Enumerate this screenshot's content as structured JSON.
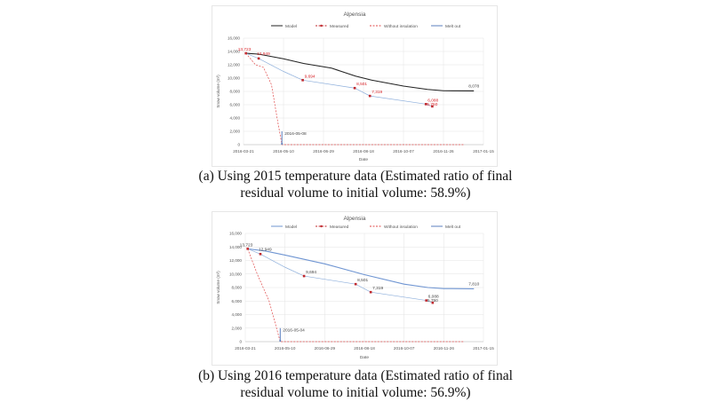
{
  "chart_data": [
    {
      "type": "line",
      "title": "Alpensia",
      "xlabel": "Date",
      "ylabel": "Snow volume (m³)",
      "ylim": [
        0,
        16000
      ],
      "yticks": [
        "0",
        "2,000",
        "4,000",
        "6,000",
        "8,000",
        "10,000",
        "12,000",
        "14,000",
        "16,000"
      ],
      "xlim": [
        "2016-03-21",
        "2017-01-15"
      ],
      "xticks": [
        "2016-03-21",
        "2016-05-10",
        "2016-06-29",
        "2016-08-18",
        "2016-10-07",
        "2016-11-26",
        "2017-01-15"
      ],
      "grid": true,
      "legend_position": "top",
      "label_color": "#d9262b",
      "series": [
        {
          "name": "Model",
          "color": "#222222",
          "points": [
            [
              "2016-03-24",
              13723
            ],
            [
              "2016-04-09",
              13600
            ],
            [
              "2016-05-10",
              12900
            ],
            [
              "2016-06-04",
              12200
            ],
            [
              "2016-07-09",
              11500
            ],
            [
              "2016-08-08",
              10300
            ],
            [
              "2016-08-28",
              9700
            ],
            [
              "2016-10-07",
              8800
            ],
            [
              "2016-11-06",
              8300
            ],
            [
              "2016-11-26",
              8100
            ],
            [
              "2017-01-03",
              8078
            ]
          ]
        },
        {
          "name": "Measured",
          "color": "#c0282d",
          "line_color": "#8fb0dc",
          "points": [
            [
              "2016-03-24",
              13723
            ],
            [
              "2016-04-09",
              12949
            ],
            [
              "2016-05-10",
              11000
            ],
            [
              "2016-06-03",
              9694
            ],
            [
              "2016-08-07",
              8501
            ],
            [
              "2016-08-26",
              7319
            ],
            [
              "2016-11-04",
              6088
            ],
            [
              "2016-11-12",
              5750
            ]
          ]
        },
        {
          "name": "Without insulation",
          "color": "#e04a4a",
          "points": [
            [
              "2016-03-24",
              13723
            ],
            [
              "2016-04-05",
              12000
            ],
            [
              "2016-04-15",
              11600
            ],
            [
              "2016-04-25",
              9000
            ],
            [
              "2016-05-02",
              4000
            ],
            [
              "2016-05-08",
              0
            ],
            [
              "2016-12-21",
              0
            ]
          ]
        },
        {
          "name": "Melt out",
          "color": "#5b7fbf",
          "points": [
            [
              "2016-05-08",
              2000
            ],
            [
              "2016-05-08",
              0
            ]
          ]
        }
      ],
      "data_labels": [
        {
          "date": "2016-03-24",
          "value": 13723,
          "text": "13,723"
        },
        {
          "date": "2016-04-09",
          "value": 12949,
          "text": "12,949"
        },
        {
          "date": "2016-06-03",
          "value": 9694,
          "text": "9,694"
        },
        {
          "date": "2016-08-07",
          "value": 8501,
          "text": "8,501"
        },
        {
          "date": "2016-08-26",
          "value": 7319,
          "text": "7,319"
        },
        {
          "date": "2016-11-04",
          "value": 6088,
          "text": "6,088"
        },
        {
          "date": "2016-11-12",
          "value": 5750,
          "text": "5,750"
        },
        {
          "date": "2017-01-03",
          "value": 8078,
          "text": "8,078",
          "model": true
        },
        {
          "date": "2016-05-08",
          "value": 1500,
          "text": "2016-05-08",
          "model": true
        }
      ]
    },
    {
      "type": "line",
      "title": "Alpensia",
      "xlabel": "Date",
      "ylabel": "Snow volume (m³)",
      "ylim": [
        0,
        16000
      ],
      "yticks": [
        "0",
        "2,000",
        "4,000",
        "6,000",
        "8,000",
        "10,000",
        "12,000",
        "14,000",
        "16,000"
      ],
      "xlim": [
        "2016-03-21",
        "2017-01-15"
      ],
      "xticks": [
        "2016-03-21",
        "2016-05-10",
        "2016-06-29",
        "2016-08-18",
        "2016-10-07",
        "2016-11-26",
        "2017-01-15"
      ],
      "grid": true,
      "legend_position": "top",
      "label_color": "#444444",
      "series": [
        {
          "name": "Model",
          "color": "#6f95d2",
          "points": [
            [
              "2016-03-24",
              13723
            ],
            [
              "2016-04-15",
              13400
            ],
            [
              "2016-05-10",
              12800
            ],
            [
              "2016-06-29",
              11500
            ],
            [
              "2016-08-18",
              9900
            ],
            [
              "2016-10-07",
              8500
            ],
            [
              "2016-11-06",
              8000
            ],
            [
              "2016-11-26",
              7850
            ],
            [
              "2017-01-03",
              7810
            ]
          ]
        },
        {
          "name": "Measured",
          "color": "#c0282d",
          "line_color": "#8fb0dc",
          "points": [
            [
              "2016-03-24",
              13723
            ],
            [
              "2016-04-09",
              12949
            ],
            [
              "2016-05-10",
              11000
            ],
            [
              "2016-06-03",
              9694
            ],
            [
              "2016-08-07",
              8501
            ],
            [
              "2016-08-26",
              7319
            ],
            [
              "2016-11-04",
              6088
            ],
            [
              "2016-11-12",
              5750
            ]
          ]
        },
        {
          "name": "Without insulation",
          "color": "#e04a4a",
          "points": [
            [
              "2016-03-24",
              13723
            ],
            [
              "2016-04-05",
              10000
            ],
            [
              "2016-04-20",
              6000
            ],
            [
              "2016-04-27",
              3000
            ],
            [
              "2016-05-04",
              0
            ],
            [
              "2016-12-21",
              0
            ]
          ]
        },
        {
          "name": "Melt out",
          "color": "#5b7fbf",
          "points": [
            [
              "2016-05-04",
              2000
            ],
            [
              "2016-05-04",
              0
            ]
          ]
        }
      ],
      "data_labels": [
        {
          "date": "2016-03-24",
          "value": 13723,
          "text": "13,723"
        },
        {
          "date": "2016-04-09",
          "value": 12949,
          "text": "12,949"
        },
        {
          "date": "2016-06-03",
          "value": 9694,
          "text": "9,694"
        },
        {
          "date": "2016-08-07",
          "value": 8501,
          "text": "8,501"
        },
        {
          "date": "2016-08-26",
          "value": 7319,
          "text": "7,319"
        },
        {
          "date": "2016-11-04",
          "value": 6088,
          "text": "6,088"
        },
        {
          "date": "2016-11-12",
          "value": 5750,
          "text": "5,750"
        },
        {
          "date": "2017-01-03",
          "value": 7810,
          "text": "7,810",
          "model": true
        },
        {
          "date": "2016-05-04",
          "value": 1500,
          "text": "2016-05-04",
          "model": true
        }
      ]
    }
  ],
  "captions": [
    "(a) Using 2015 temperature data (Estimated ratio of final residual volume to initial volume: 58.9%)",
    "(b) Using 2016 temperature data (Estimated ratio of final residual volume to initial volume: 56.9%)"
  ]
}
